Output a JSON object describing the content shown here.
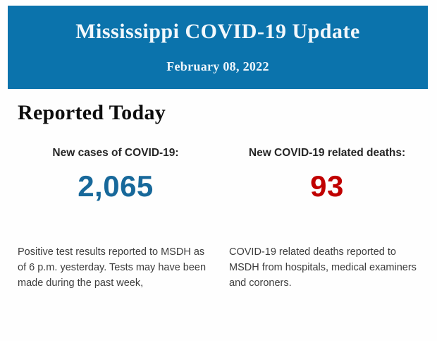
{
  "header": {
    "title": "Mississippi COVID-19 Update",
    "date": "February 08, 2022"
  },
  "main": {
    "heading": "Reported Today",
    "stats": [
      {
        "label": "New cases of COVID-19:",
        "value": "2,065",
        "value_color": "#17689a",
        "description": "Positive test results reported to MSDH as of 6 p.m. yesterday. Tests may have been made during the past week,"
      },
      {
        "label": "New COVID-19 related deaths:",
        "value": "93",
        "value_color": "#c00000",
        "description": "COVID-19 related deaths reported to MSDH from hospitals, medical examiners and coroners."
      }
    ]
  },
  "colors": {
    "header_bg": "#0b73ac",
    "header_text": "#f2f8fc",
    "cases_value": "#17689a",
    "deaths_value": "#c00000",
    "body_text": "#3c3c3c"
  }
}
